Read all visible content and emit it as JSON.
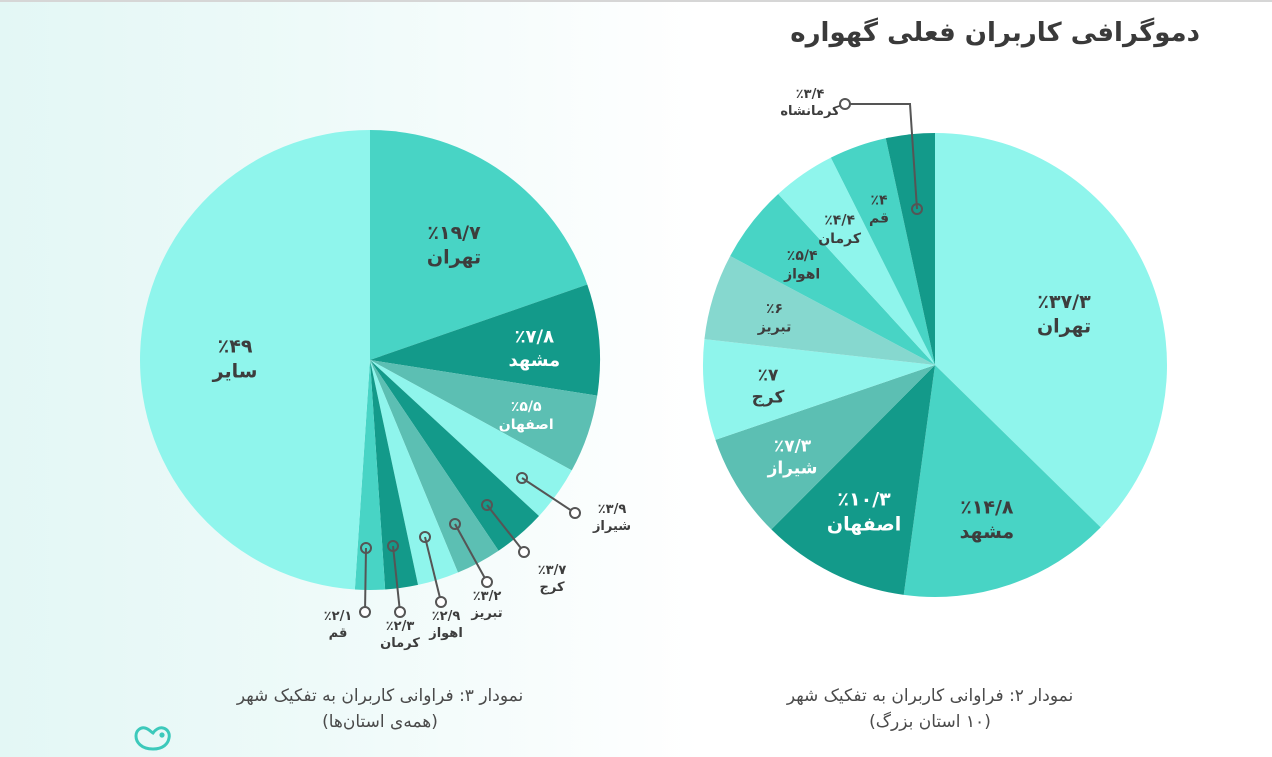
{
  "title": "دموگرافی کاربران فعلی گهواره",
  "colors": {
    "c1": "#8ff5ec",
    "c2": "#48d4c5",
    "c3": "#139a8a",
    "c4": "#5cbfb3",
    "c5": "#86d8cf",
    "text_dark": "#3d3d3d",
    "text_light": "#ffffff",
    "leader": "#555555"
  },
  "captions": {
    "chart2_line1": "نمودار ۲: فراوانی کاربران به تفکیک شهر",
    "chart2_line2": "(۱۰ استان بزرگ)",
    "chart3_line1": "نمودار ۳: فراوانی کاربران به تفکیک شهر",
    "chart3_line2": "(همه‌ی استان‌ها)"
  },
  "logo": "gahvareh-heart-logo",
  "chart_data": [
    {
      "type": "pie",
      "title": "نمودار ۲: فراوانی کاربران به تفکیک شهر (۱۰ استان بزرگ)",
      "direction": "clockwise from 12 o'clock",
      "categories": [
        "تهران",
        "مشهد",
        "اصفهان",
        "شیراز",
        "کرج",
        "تبریز",
        "اهواز",
        "کرمان",
        "قم",
        "کرمانشاه"
      ],
      "values": [
        37.3,
        14.8,
        10.3,
        7.3,
        7,
        6,
        5.4,
        4.4,
        4,
        3.4
      ],
      "labels": [
        "٪۳۷/۳",
        "٪۱۴/۸",
        "٪۱۰/۳",
        "٪۷/۳",
        "٪۷",
        "٪۶",
        "٪۵/۴",
        "٪۴/۴",
        "٪۴",
        "٪۳/۴"
      ],
      "colors": [
        "#8ff5ec",
        "#48d4c5",
        "#139a8a",
        "#5cbfb3",
        "#8ff5ec",
        "#86d8cf",
        "#48d4c5",
        "#8ff5ec",
        "#48d4c5",
        "#139a8a"
      ],
      "label_colors": [
        "#3d3d3d",
        "#3d3d3d",
        "#ffffff",
        "#ffffff",
        "#3d3d3d",
        "#3d3d3d",
        "#3d3d3d",
        "#3d3d3d",
        "#3d3d3d",
        "#3d3d3d"
      ],
      "callouts": [
        9
      ]
    },
    {
      "type": "pie",
      "title": "نمودار ۳: فراوانی کاربران به تفکیک شهر (همه‌ی استان‌ها)",
      "direction": "clockwise from 12 o'clock",
      "categories": [
        "تهران",
        "مشهد",
        "اصفهان",
        "شیراز",
        "کرج",
        "تبریز",
        "اهواز",
        "کرمان",
        "قم",
        "سایر"
      ],
      "values": [
        19.7,
        7.8,
        5.5,
        3.9,
        3.7,
        3.2,
        2.9,
        2.3,
        2.1,
        49
      ],
      "labels": [
        "٪۱۹/۷",
        "٪۷/۸",
        "٪۵/۵",
        "٪۳/۹",
        "٪۳/۷",
        "٪۳/۲",
        "٪۲/۹",
        "٪۲/۳",
        "٪۲/۱",
        "٪۴۹"
      ],
      "colors": [
        "#48d4c5",
        "#139a8a",
        "#5cbfb3",
        "#8ff5ec",
        "#139a8a",
        "#5cbfb3",
        "#8ff5ec",
        "#139a8a",
        "#48d4c5",
        "#8ff5ec"
      ],
      "label_colors": [
        "#3d3d3d",
        "#ffffff",
        "#ffffff",
        "#3d3d3d",
        "#3d3d3d",
        "#3d3d3d",
        "#3d3d3d",
        "#3d3d3d",
        "#3d3d3d",
        "#3d3d3d"
      ],
      "callouts": [
        3,
        4,
        5,
        6,
        7,
        8
      ]
    }
  ]
}
